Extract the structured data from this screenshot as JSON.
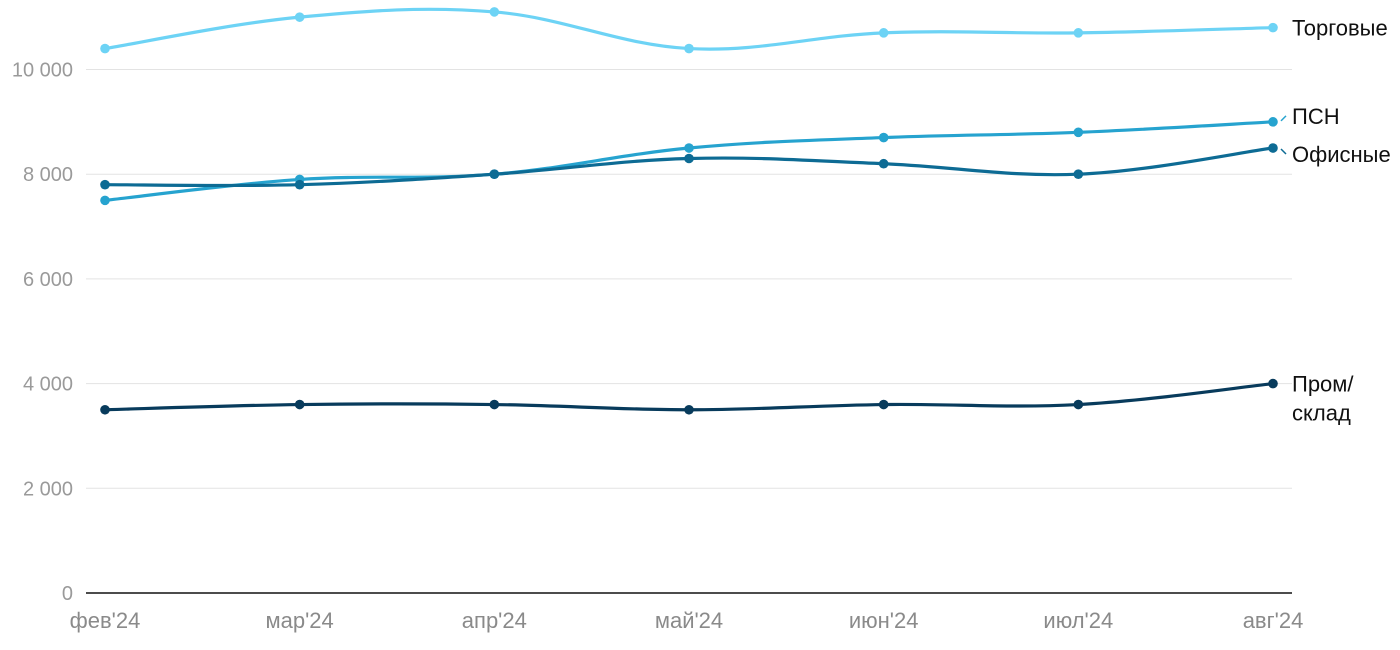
{
  "chart_data": {
    "type": "line",
    "categories": [
      "фев'24",
      "мар'24",
      "апр'24",
      "май'24",
      "июн'24",
      "июл'24",
      "авг'24"
    ],
    "ylim": [
      0,
      11200
    ],
    "yticks": [
      "0",
      "2 000",
      "4 000",
      "6 000",
      "8 000",
      "10 000"
    ],
    "ytick_values": [
      0,
      2000,
      4000,
      6000,
      8000,
      10000
    ],
    "grid": true,
    "legend": "inline-right",
    "title": "",
    "xlabel": "",
    "ylabel": "",
    "series": [
      {
        "name": "Торговые",
        "label_lines": [
          "Торговые"
        ],
        "color": "#6dd3f5",
        "values": [
          10400,
          11000,
          11100,
          10400,
          10700,
          10700,
          10800
        ]
      },
      {
        "name": "ПСН",
        "label_lines": [
          "ПСН"
        ],
        "color": "#26a3cf",
        "values": [
          7500,
          7900,
          8000,
          8500,
          8700,
          8800,
          9000
        ]
      },
      {
        "name": "Офисные",
        "label_lines": [
          "Офисные"
        ],
        "color": "#0d6b94",
        "values": [
          7800,
          7800,
          8000,
          8300,
          8200,
          8000,
          8500
        ]
      },
      {
        "name": "Пром/склад",
        "label_lines": [
          "Пром/",
          "склад"
        ],
        "color": "#083b5c",
        "values": [
          3500,
          3600,
          3600,
          3500,
          3600,
          3600,
          4000
        ]
      }
    ]
  }
}
